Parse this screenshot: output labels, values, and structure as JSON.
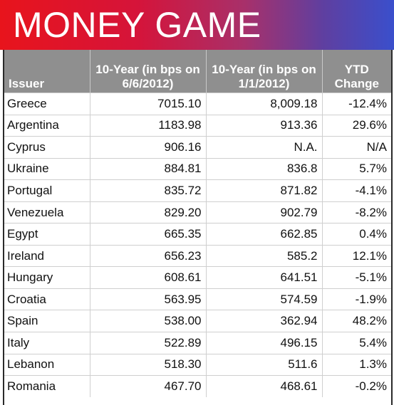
{
  "banner": {
    "title": "MONEY GAME"
  },
  "table": {
    "headers": {
      "issuer": "Issuer",
      "col_2012_06": "10-Year (in bps on 6/6/2012)",
      "col_2012_01": "10-Year (in bps on 1/1/2012)",
      "ytd": "YTD Change"
    },
    "rows": [
      {
        "issuer": "Greece",
        "jun": "7015.10",
        "jan": "8,009.18",
        "ytd": "-12.4%"
      },
      {
        "issuer": "Argentina",
        "jun": "1183.98",
        "jan": "913.36",
        "ytd": "29.6%"
      },
      {
        "issuer": "Cyprus",
        "jun": "906.16",
        "jan": "N.A.",
        "ytd": "N/A"
      },
      {
        "issuer": "Ukraine",
        "jun": "884.81",
        "jan": "836.8",
        "ytd": "5.7%"
      },
      {
        "issuer": "Portugal",
        "jun": "835.72",
        "jan": "871.82",
        "ytd": "-4.1%"
      },
      {
        "issuer": "Venezuela",
        "jun": "829.20",
        "jan": "902.79",
        "ytd": "-8.2%"
      },
      {
        "issuer": "Egypt",
        "jun": "665.35",
        "jan": "662.85",
        "ytd": "0.4%"
      },
      {
        "issuer": "Ireland",
        "jun": "656.23",
        "jan": "585.2",
        "ytd": "12.1%"
      },
      {
        "issuer": "Hungary",
        "jun": "608.61",
        "jan": "641.51",
        "ytd": "-5.1%"
      },
      {
        "issuer": "Croatia",
        "jun": "563.95",
        "jan": "574.59",
        "ytd": "-1.9%"
      },
      {
        "issuer": "Spain",
        "jun": "538.00",
        "jan": "362.94",
        "ytd": "48.2%"
      },
      {
        "issuer": "Italy",
        "jun": "522.89",
        "jan": "496.15",
        "ytd": "5.4%"
      },
      {
        "issuer": "Lebanon",
        "jun": "518.30",
        "jan": "511.6",
        "ytd": "1.3%"
      },
      {
        "issuer": "Romania",
        "jun": "467.70",
        "jan": "468.61",
        "ytd": "-0.2%"
      }
    ]
  },
  "colors": {
    "banner_red": "#e8141c",
    "banner_blue": "#3a4fcc",
    "header_gray": "#8f8f8f"
  }
}
